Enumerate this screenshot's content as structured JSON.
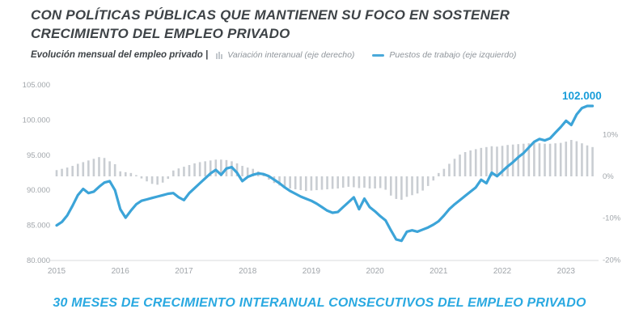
{
  "header": {
    "title_lines": [
      "CON POLÍTICAS PÚBLICAS QUE MANTIENEN SU FOCO EN SOSTENER",
      "CRECIMIENTO DEL EMPLEO PRIVADO"
    ]
  },
  "legend": {
    "label": "Evolución mensual del empleo privado |",
    "bar_series_label": "Variación interanual (eje derecho)",
    "line_series_label": "Puestos de trabajo (eje izquierdo)"
  },
  "footer": {
    "text": "30 MESES DE CRECIMIENTO INTERANUAL CONSECUTIVOS DEL EMPLEO PRIVADO"
  },
  "colors": {
    "title": "#3e4347",
    "axis_text": "#a0a5aa",
    "baseline": "#d8dbde",
    "bar": "#c9cdd2",
    "line": "#3ca4d8",
    "annotation": "#199dd9",
    "footer": "#2aa9e1"
  },
  "chart_data": {
    "type": "combo bar+line",
    "x_start": "2015-01",
    "x_end": "2023-06",
    "months_per_point": 1,
    "grid": "off",
    "year_ticks": [
      "2015",
      "2016",
      "2017",
      "2018",
      "2019",
      "2020",
      "2021",
      "2022",
      "2023"
    ],
    "left_axis": {
      "tick_labels": [
        "105.000",
        "100.000",
        "95.000",
        "90.000",
        "85.000",
        "80.000"
      ],
      "tick_values": [
        105000,
        100000,
        95000,
        90000,
        85000,
        80000
      ],
      "range": [
        80000,
        105000
      ]
    },
    "right_axis": {
      "tick_labels": [
        "10%",
        "0%",
        "-10%",
        "-20%"
      ],
      "tick_values": [
        10,
        0,
        -10,
        -20
      ],
      "range_shown": [
        -20,
        10
      ]
    },
    "annotation": {
      "text": "102.000"
    },
    "series": [
      {
        "name": "Variación interanual (eje derecho)",
        "type": "bar",
        "axis": "right",
        "unit": "%",
        "values": [
          1.5,
          1.8,
          2.1,
          2.5,
          3.0,
          3.4,
          3.8,
          4.2,
          4.6,
          4.4,
          3.6,
          2.9,
          1.2,
          1.0,
          0.8,
          0.3,
          -0.5,
          -1.2,
          -1.8,
          -2.0,
          -1.5,
          -0.6,
          1.4,
          1.9,
          2.3,
          2.7,
          3.1,
          3.4,
          3.6,
          3.8,
          4.0,
          4.0,
          3.9,
          3.6,
          3.1,
          2.5,
          2.1,
          1.8,
          1.2,
          0.4,
          -0.8,
          -1.6,
          -2.2,
          -2.6,
          -2.9,
          -3.1,
          -3.3,
          -3.5,
          -3.4,
          -3.3,
          -3.2,
          -3.1,
          -3.0,
          -2.9,
          -2.7,
          -2.5,
          -2.6,
          -2.8,
          -2.7,
          -2.9,
          -2.9,
          -2.8,
          -3.2,
          -4.6,
          -5.4,
          -5.6,
          -4.9,
          -4.5,
          -4.1,
          -3.4,
          -2.3,
          -1.0,
          0.8,
          1.8,
          3.0,
          4.2,
          5.2,
          5.8,
          6.2,
          6.5,
          6.8,
          7.0,
          7.2,
          7.1,
          7.3,
          7.5,
          7.6,
          7.7,
          7.8,
          7.9,
          8.0,
          7.9,
          7.8,
          7.8,
          7.9,
          8.0,
          8.3,
          8.7,
          8.4,
          7.9,
          7.4,
          7.0
        ]
      },
      {
        "name": "Puestos de trabajo (eje izquierdo)",
        "type": "line",
        "axis": "left",
        "unit": "puestos",
        "values": [
          85000,
          85500,
          86400,
          87800,
          89300,
          90200,
          89600,
          89800,
          90500,
          91100,
          91300,
          90000,
          87300,
          86100,
          87100,
          88000,
          88500,
          88700,
          88900,
          89100,
          89300,
          89500,
          89600,
          89000,
          88600,
          89600,
          90300,
          91000,
          91700,
          92400,
          92900,
          92200,
          93100,
          93300,
          92500,
          91300,
          91900,
          92200,
          92400,
          92300,
          92000,
          91500,
          91000,
          90400,
          89900,
          89500,
          89100,
          88800,
          88500,
          88100,
          87600,
          87100,
          86800,
          86900,
          87600,
          88300,
          89000,
          87300,
          88800,
          87600,
          87000,
          86300,
          85700,
          84300,
          83000,
          82800,
          84100,
          84300,
          84100,
          84400,
          84700,
          85100,
          85600,
          86400,
          87300,
          88000,
          88600,
          89200,
          89800,
          90400,
          91500,
          91000,
          92500,
          92000,
          92700,
          93400,
          94000,
          94700,
          95300,
          96100,
          96900,
          97300,
          97100,
          97400,
          98200,
          99000,
          99900,
          99300,
          100800,
          101700,
          102000,
          102000
        ]
      }
    ]
  }
}
